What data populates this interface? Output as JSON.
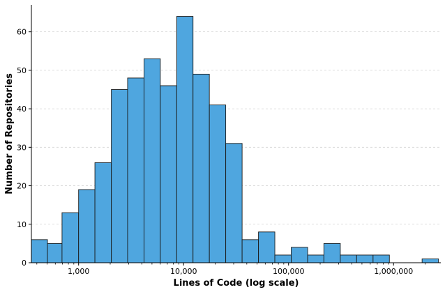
{
  "chart_data": {
    "type": "bar",
    "title": "",
    "xlabel": "Lines of Code (log scale)",
    "ylabel": "Number of Repositories",
    "x_scale": "log",
    "xlim": [
      355,
      2820000
    ],
    "ylim": [
      0,
      67
    ],
    "yticks": [
      0,
      10,
      20,
      30,
      40,
      50,
      60
    ],
    "xticks": [
      {
        "value": 1000,
        "label": "1,000"
      },
      {
        "value": 10000,
        "label": "10,000"
      },
      {
        "value": 100000,
        "label": "100,000"
      },
      {
        "value": 1000000,
        "label": "1,000,000"
      }
    ],
    "grid": {
      "y": true,
      "x": false
    },
    "bar_color": "#4fa6df",
    "edge_color": "#1a1a1a",
    "bins": [
      {
        "from": 355,
        "to": 505,
        "count": 6
      },
      {
        "from": 505,
        "to": 695,
        "count": 5
      },
      {
        "from": 695,
        "to": 1000,
        "count": 13
      },
      {
        "from": 1000,
        "to": 1430,
        "count": 19
      },
      {
        "from": 1430,
        "to": 2050,
        "count": 26
      },
      {
        "from": 2050,
        "to": 2930,
        "count": 45
      },
      {
        "from": 2930,
        "to": 4200,
        "count": 48
      },
      {
        "from": 4200,
        "to": 6000,
        "count": 53
      },
      {
        "from": 6000,
        "to": 8600,
        "count": 46
      },
      {
        "from": 8600,
        "to": 12300,
        "count": 64
      },
      {
        "from": 12300,
        "to": 17600,
        "count": 49
      },
      {
        "from": 17600,
        "to": 25200,
        "count": 41
      },
      {
        "from": 25200,
        "to": 36100,
        "count": 31
      },
      {
        "from": 36100,
        "to": 51700,
        "count": 6
      },
      {
        "from": 51700,
        "to": 74000,
        "count": 8
      },
      {
        "from": 74000,
        "to": 106000,
        "count": 2
      },
      {
        "from": 106000,
        "to": 152000,
        "count": 4
      },
      {
        "from": 152000,
        "to": 217000,
        "count": 2
      },
      {
        "from": 217000,
        "to": 311000,
        "count": 5
      },
      {
        "from": 311000,
        "to": 445000,
        "count": 2
      },
      {
        "from": 445000,
        "to": 638000,
        "count": 2
      },
      {
        "from": 638000,
        "to": 913000,
        "count": 2
      },
      {
        "from": 913000,
        "to": 1310000,
        "count": 0
      },
      {
        "from": 1310000,
        "to": 1870000,
        "count": 0
      },
      {
        "from": 1870000,
        "to": 2680000,
        "count": 1
      }
    ]
  }
}
